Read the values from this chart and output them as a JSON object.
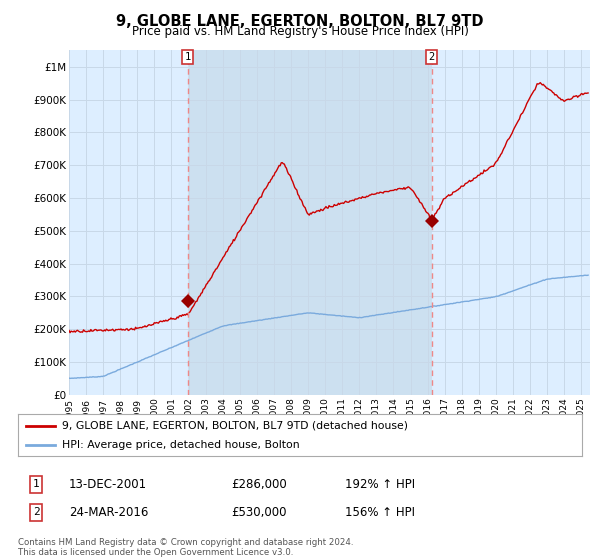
{
  "title": "9, GLOBE LANE, EGERTON, BOLTON, BL7 9TD",
  "subtitle": "Price paid vs. HM Land Registry's House Price Index (HPI)",
  "background_color": "#ffffff",
  "grid_color": "#c8d8e8",
  "plot_bg_color": "#ddeeff",
  "plot_bg_highlight": "#cce0f0",
  "ylim": [
    0,
    1050000
  ],
  "yticks": [
    0,
    100000,
    200000,
    300000,
    400000,
    500000,
    600000,
    700000,
    800000,
    900000,
    1000000
  ],
  "ytick_labels": [
    "£0",
    "£100K",
    "£200K",
    "£300K",
    "£400K",
    "£500K",
    "£600K",
    "£700K",
    "£800K",
    "£900K",
    "£1M"
  ],
  "sale1_date": 2001.95,
  "sale1_price": 286000,
  "sale1_label": "1",
  "sale2_date": 2016.23,
  "sale2_price": 530000,
  "sale2_label": "2",
  "legend_line1": "9, GLOBE LANE, EGERTON, BOLTON, BL7 9TD (detached house)",
  "legend_line2": "HPI: Average price, detached house, Bolton",
  "footer": "Contains HM Land Registry data © Crown copyright and database right 2024.\nThis data is licensed under the Open Government Licence v3.0.",
  "hpi_color": "#7aaadd",
  "price_color": "#cc0000",
  "marker_color": "#990000",
  "sale_line_color": "#ee8888",
  "xmin": 1995.0,
  "xmax": 2025.5,
  "sale1_info_date": "13-DEC-2001",
  "sale1_info_price": "£286,000",
  "sale1_info_pct": "192% ↑ HPI",
  "sale2_info_date": "24-MAR-2016",
  "sale2_info_price": "£530,000",
  "sale2_info_pct": "156% ↑ HPI"
}
